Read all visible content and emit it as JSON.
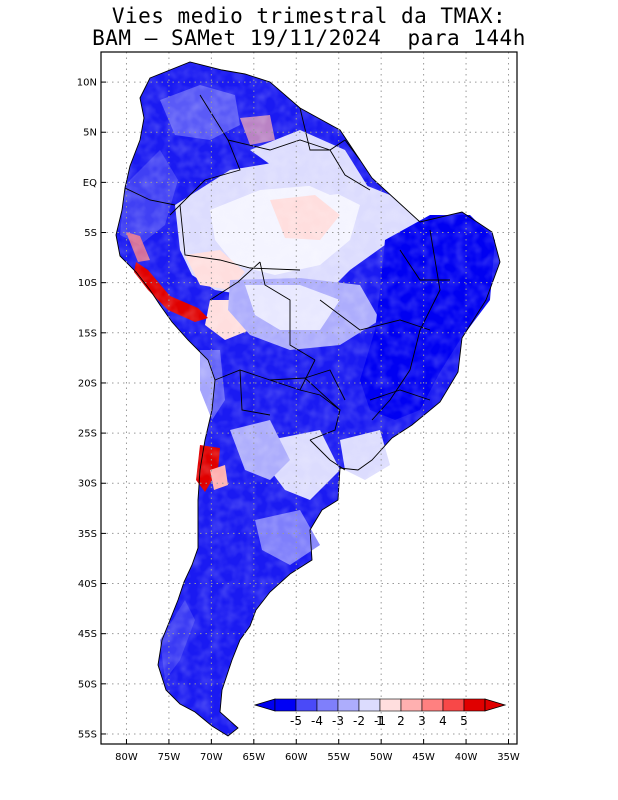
{
  "title": {
    "line1": "Vies medio trimestral da TMAX:",
    "line2": "BAM – SAMet 19/11/2024  para 144h"
  },
  "map": {
    "region": "South America",
    "projection": "cylindrical equidistant",
    "lon_range": [
      -83,
      -34
    ],
    "lat_range": [
      13,
      -56
    ],
    "grid": "dotted",
    "lat_labels": [
      "10N",
      "5N",
      "EQ",
      "5S",
      "10S",
      "15S",
      "20S",
      "25S",
      "30S",
      "35S",
      "40S",
      "45S",
      "50S",
      "55S"
    ],
    "lat_values": [
      10,
      5,
      0,
      -5,
      -10,
      -15,
      -20,
      -25,
      -30,
      -35,
      -40,
      -45,
      -50,
      -55
    ],
    "lon_labels": [
      "80W",
      "75W",
      "70W",
      "65W",
      "60W",
      "55W",
      "50W",
      "45W",
      "40W",
      "35W"
    ],
    "lon_values": [
      -80,
      -75,
      -70,
      -65,
      -60,
      -55,
      -50,
      -45,
      -40,
      -35
    ]
  },
  "colorbar": {
    "labels": [
      "-5",
      "-4",
      "-3",
      "-2",
      "-1",
      "1",
      "2",
      "3",
      "4",
      "5"
    ],
    "colors": [
      "#0000f5",
      "#4a4af8",
      "#7f7ffb",
      "#adadfc",
      "#dcdcfe",
      "#ffdede",
      "#ffb0b0",
      "#ff8080",
      "#f84848",
      "#e00000"
    ],
    "under_color": "#0000f0",
    "over_color": "#e00000"
  }
}
